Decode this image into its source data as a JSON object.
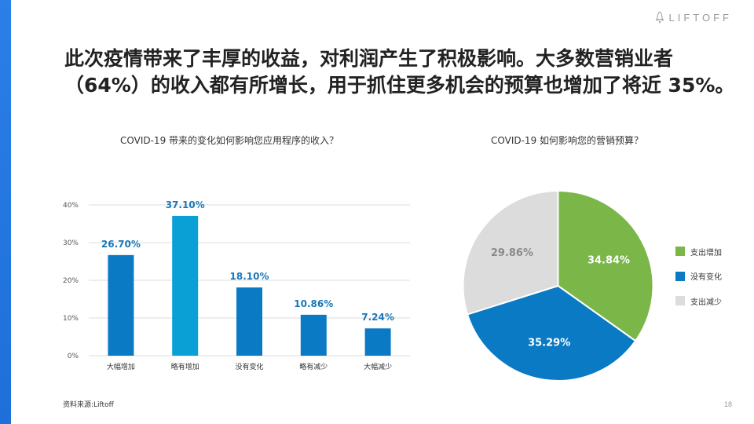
{
  "brand": {
    "name": "LIFTOFF",
    "icon": "rocket-icon"
  },
  "headline": {
    "line1": "此次疫情带来了丰厚的收益，对利润产生了积极影响。大多数营销业者",
    "line2": "（64%）的收入都有所增长，用于抓住更多机会的预算也增加了将近 35%。"
  },
  "source": "资料来源:Liftoff",
  "page_number": "18",
  "colors": {
    "bar": "#0a7ac4",
    "bar_highlight": "#0aa0d6",
    "label": "#1778b9",
    "pie_green": "#7ab648",
    "pie_blue": "#0a7ac4",
    "pie_grey": "#dcdcdc",
    "grid": "#dddddd"
  },
  "chart_data": [
    {
      "type": "bar",
      "title": "COVID-19 带来的变化如何影响您应用程序的收入？",
      "categories": [
        "大幅增加",
        "略有增加",
        "没有变化",
        "略有减少",
        "大幅减少"
      ],
      "values": [
        26.7,
        37.1,
        18.1,
        10.86,
        7.24
      ],
      "value_labels": [
        "26.70%",
        "37.10%",
        "18.10%",
        "10.86%",
        "7.24%"
      ],
      "ylim": [
        0,
        40
      ],
      "yticks": [
        0,
        10,
        20,
        30,
        40
      ],
      "ytick_labels": [
        "0%",
        "10%",
        "20%",
        "30%",
        "40%"
      ],
      "grid": true,
      "highlight_index": 1
    },
    {
      "type": "pie",
      "title": "COVID-19 如何影响您的营销预算？",
      "slices": [
        {
          "name": "支出增加",
          "value": 34.84,
          "label": "34.84%",
          "color": "#7ab648"
        },
        {
          "name": "没有变化",
          "value": 35.29,
          "label": "35.29%",
          "color": "#0a7ac4"
        },
        {
          "name": "支出减少",
          "value": 29.86,
          "label": "29.86%",
          "color": "#dcdcdc"
        }
      ],
      "legend_position": "right"
    }
  ]
}
